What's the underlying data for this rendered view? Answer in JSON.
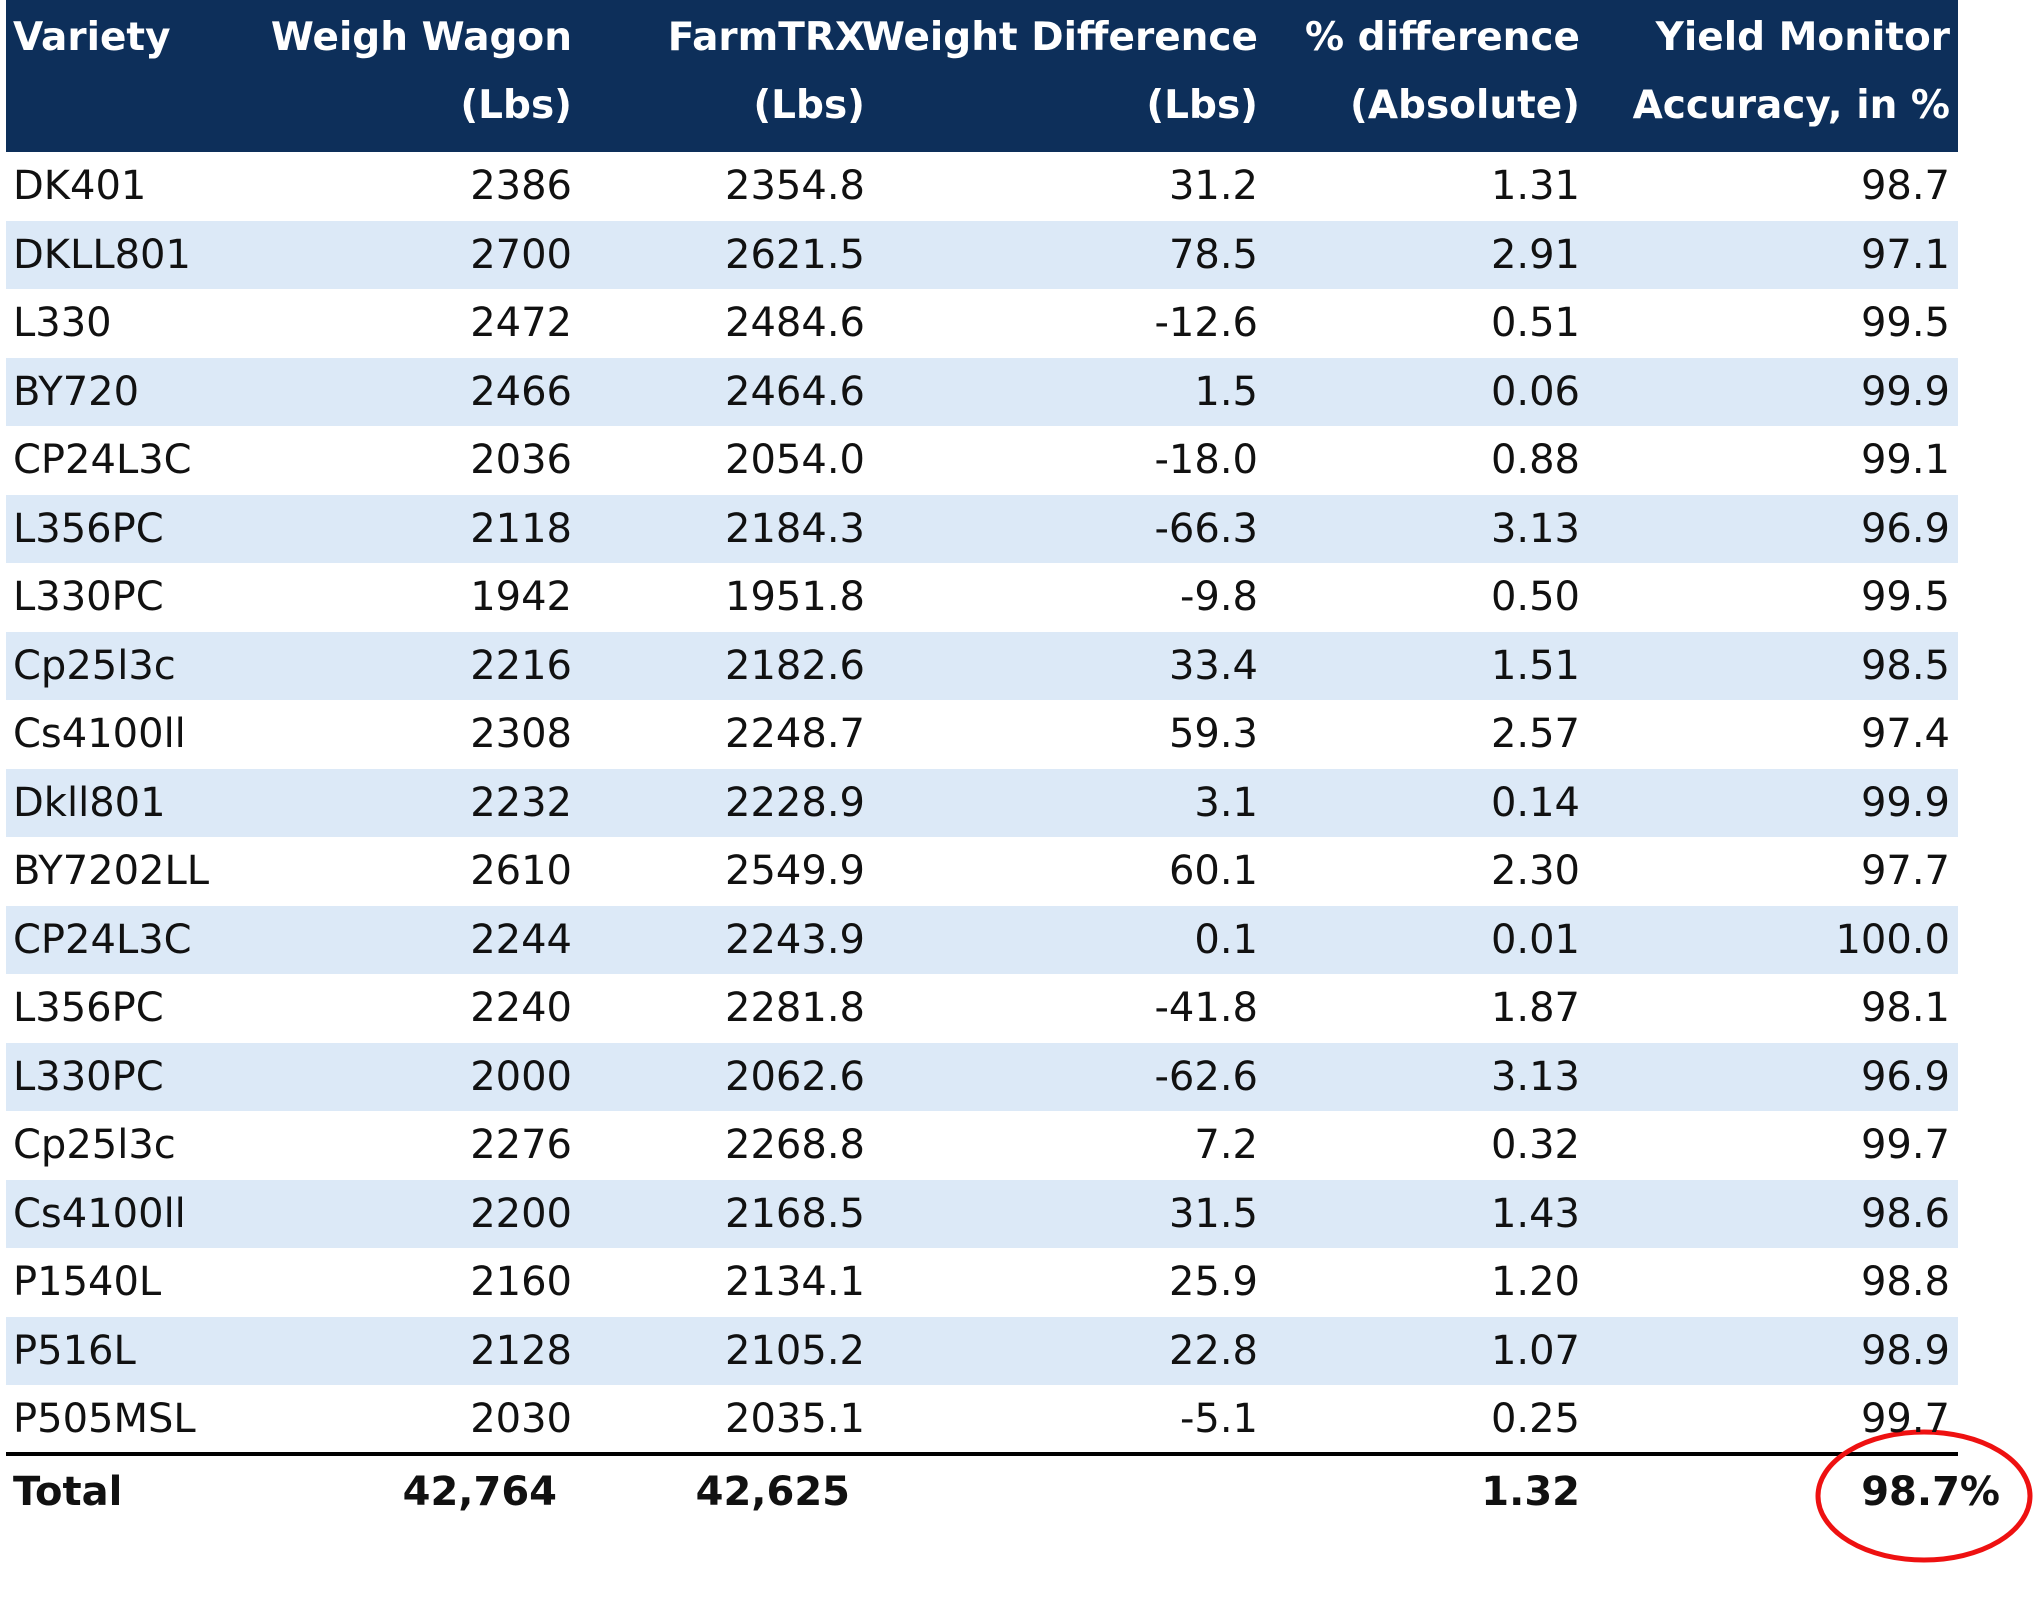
{
  "table": {
    "headers": [
      [
        "Variety"
      ],
      [
        "Weigh Wagon",
        "(Lbs)"
      ],
      [
        "FarmTRX",
        "(Lbs)"
      ],
      [
        "Weight Difference",
        "(Lbs)"
      ],
      [
        "% difference",
        "(Absolute)"
      ],
      [
        "Yield Monitor",
        "Accuracy, in %"
      ]
    ],
    "rows": [
      [
        "DK401",
        "2386",
        "2354.8",
        "31.2",
        "1.31",
        "98.7"
      ],
      [
        "DKLL801",
        "2700",
        "2621.5",
        "78.5",
        "2.91",
        "97.1"
      ],
      [
        "L330",
        "2472",
        "2484.6",
        "-12.6",
        "0.51",
        "99.5"
      ],
      [
        "BY720",
        "2466",
        "2464.6",
        "1.5",
        "0.06",
        "99.9"
      ],
      [
        "CP24L3C",
        "2036",
        "2054.0",
        "-18.0",
        "0.88",
        "99.1"
      ],
      [
        "L356PC",
        "2118",
        "2184.3",
        "-66.3",
        "3.13",
        "96.9"
      ],
      [
        "L330PC",
        "1942",
        "1951.8",
        "-9.8",
        "0.50",
        "99.5"
      ],
      [
        "Cp25l3c",
        "2216",
        "2182.6",
        "33.4",
        "1.51",
        "98.5"
      ],
      [
        "Cs4100ll",
        "2308",
        "2248.7",
        "59.3",
        "2.57",
        "97.4"
      ],
      [
        "Dkll801",
        "2232",
        "2228.9",
        "3.1",
        "0.14",
        "99.9"
      ],
      [
        "BY7202LL",
        "2610",
        "2549.9",
        "60.1",
        "2.30",
        "97.7"
      ],
      [
        "CP24L3C",
        "2244",
        "2243.9",
        "0.1",
        "0.01",
        "100.0"
      ],
      [
        "L356PC",
        "2240",
        "2281.8",
        "-41.8",
        "1.87",
        "98.1"
      ],
      [
        "L330PC",
        "2000",
        "2062.6",
        "-62.6",
        "3.13",
        "96.9"
      ],
      [
        "Cp25l3c",
        "2276",
        "2268.8",
        "7.2",
        "0.32",
        "99.7"
      ],
      [
        "Cs4100ll",
        "2200",
        "2168.5",
        "31.5",
        "1.43",
        "98.6"
      ],
      [
        "P1540L",
        "2160",
        "2134.1",
        "25.9",
        "1.20",
        "98.8"
      ],
      [
        "P516L",
        "2128",
        "2105.2",
        "22.8",
        "1.07",
        "98.9"
      ],
      [
        "P505MSL",
        "2030",
        "2035.1",
        "-5.1",
        "0.25",
        "99.7"
      ]
    ],
    "total": {
      "label": "Total",
      "weigh_wagon": "42,764",
      "farmtrx": "42,625",
      "percent_difference": "1.32",
      "accuracy": "98.7%"
    }
  }
}
